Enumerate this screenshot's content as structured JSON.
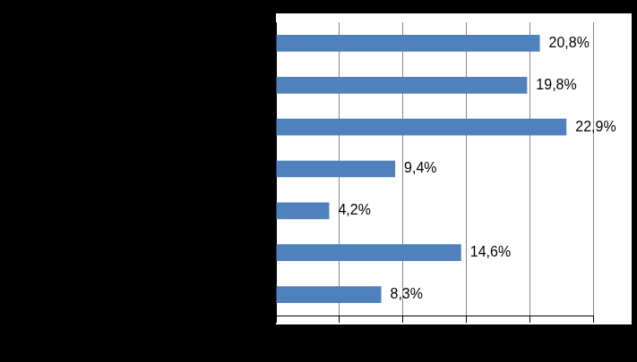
{
  "chart_data": {
    "type": "bar",
    "orientation": "horizontal",
    "categories": [
      null,
      null,
      null,
      null,
      null,
      null,
      null
    ],
    "values": [
      20.8,
      19.8,
      22.9,
      9.4,
      4.2,
      14.6,
      8.3
    ],
    "value_labels": [
      "20,8%",
      "19,8%",
      "22,9%",
      "9,4%",
      "4,2%",
      "14,6%",
      "8,3%"
    ],
    "data_labels": true,
    "color": "#4f81bd",
    "xlim": [
      0,
      25
    ],
    "xticks": [
      0,
      5,
      10,
      15,
      20,
      25
    ],
    "grid": true,
    "tick_labels": false
  }
}
